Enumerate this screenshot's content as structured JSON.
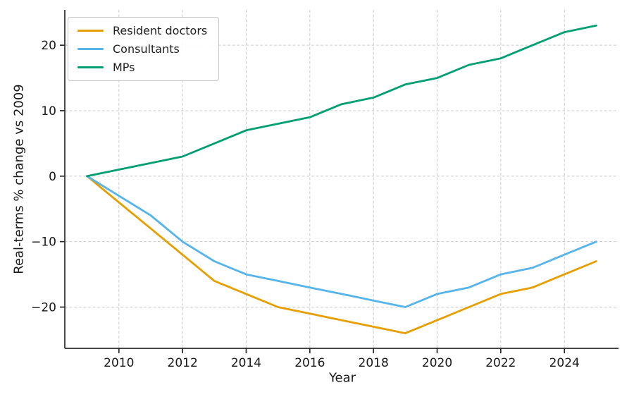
{
  "figure": {
    "background": "#ffffff",
    "text_color": "#1a1a1a",
    "grid_color": "#cccccc",
    "spine_color": "#2b2b2b"
  },
  "chart_data": {
    "type": "line",
    "title": "",
    "xlabel": "Year",
    "ylabel": "Real-terms % change vs 2009",
    "x": [
      2009,
      2010,
      2011,
      2012,
      2013,
      2014,
      2015,
      2016,
      2017,
      2018,
      2019,
      2020,
      2021,
      2022,
      2023,
      2024,
      2025
    ],
    "series": [
      {
        "name": "Resident doctors",
        "color": "#E69F00",
        "values": [
          0,
          -4,
          -8,
          -12,
          -16,
          -18,
          -20,
          -21,
          -22,
          -23,
          -24,
          -22,
          -20,
          -18,
          -17,
          -15,
          -13
        ]
      },
      {
        "name": "Consultants",
        "color": "#56B4E9",
        "values": [
          0,
          -3,
          -6,
          -10,
          -13,
          -15,
          -16,
          -17,
          -18,
          -19,
          -20,
          -18,
          -17,
          -15,
          -14,
          -12,
          -10
        ]
      },
      {
        "name": "MPs",
        "color": "#009E73",
        "values": [
          0,
          1,
          2,
          3,
          5,
          7,
          8,
          9,
          11,
          12,
          14,
          15,
          17,
          18,
          20,
          22,
          23
        ]
      }
    ],
    "xticks": [
      2010,
      2012,
      2014,
      2016,
      2018,
      2020,
      2022,
      2024
    ],
    "yticks": [
      20,
      10,
      0,
      -10,
      -20
    ],
    "xlim": [
      2008.3,
      2025.7
    ],
    "ylim": [
      -26.3,
      25.4
    ],
    "grid": true,
    "grid_style": "dashed",
    "legend_position": "upper-left"
  }
}
